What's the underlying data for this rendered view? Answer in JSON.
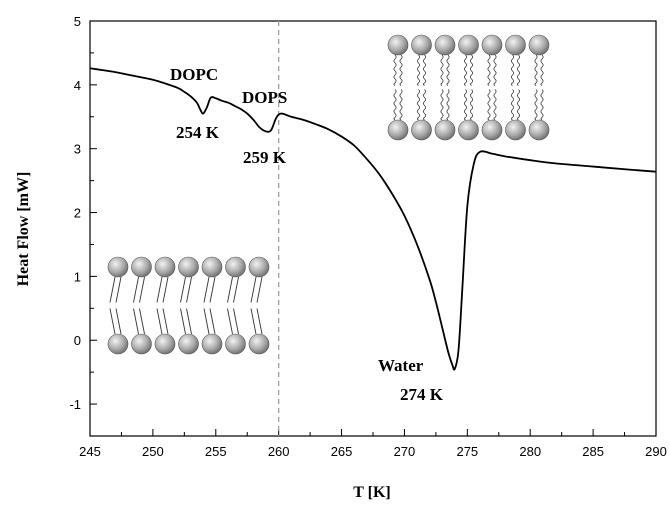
{
  "chart_data": {
    "type": "line",
    "xlabel": "T [K]",
    "ylabel": "Heat Flow [mW]",
    "xlim": [
      245,
      290
    ],
    "ylim": [
      -1.5,
      5
    ],
    "xticks": [
      245,
      250,
      255,
      260,
      265,
      270,
      275,
      280,
      285,
      290
    ],
    "yticks": [
      -1,
      0,
      1,
      2,
      3,
      4,
      5
    ],
    "reference_line_x": 260,
    "series": [
      {
        "x": [
          245,
          246,
          247,
          248,
          249,
          250,
          251,
          252,
          252.5,
          253,
          253.5,
          253.8,
          254,
          254.3,
          254.6,
          255,
          255.5,
          256,
          256.5,
          257,
          257.5,
          258,
          258.5,
          259,
          259.4,
          259.8,
          260.2,
          261,
          262,
          263,
          264,
          265,
          266,
          267,
          268,
          269,
          270,
          271,
          272,
          272.5,
          273,
          273.5,
          273.8,
          274,
          274.3,
          274.6,
          275,
          275.5,
          276,
          277,
          278,
          280,
          282,
          285,
          288,
          290
        ],
        "y": [
          4.26,
          4.23,
          4.2,
          4.16,
          4.12,
          4.08,
          4.02,
          3.95,
          3.89,
          3.82,
          3.72,
          3.6,
          3.55,
          3.65,
          3.8,
          3.79,
          3.75,
          3.72,
          3.67,
          3.62,
          3.55,
          3.45,
          3.33,
          3.27,
          3.29,
          3.48,
          3.55,
          3.5,
          3.45,
          3.38,
          3.3,
          3.19,
          3.05,
          2.84,
          2.6,
          2.3,
          1.95,
          1.5,
          0.95,
          0.6,
          0.2,
          -0.2,
          -0.38,
          -0.45,
          -0.15,
          0.8,
          2.1,
          2.75,
          2.95,
          2.92,
          2.88,
          2.82,
          2.77,
          2.72,
          2.67,
          2.64
        ]
      }
    ],
    "annotations": {
      "dopc_label": "DOPC",
      "dopc_temp": "254 K",
      "dops_label": "DOPS",
      "dops_temp": "259 K",
      "water_label": "Water",
      "water_temp": "274 K"
    },
    "colors": {
      "line": "#000000",
      "reference_line": "#a0a0a0",
      "lipid_head": "#9a9a9a"
    }
  }
}
